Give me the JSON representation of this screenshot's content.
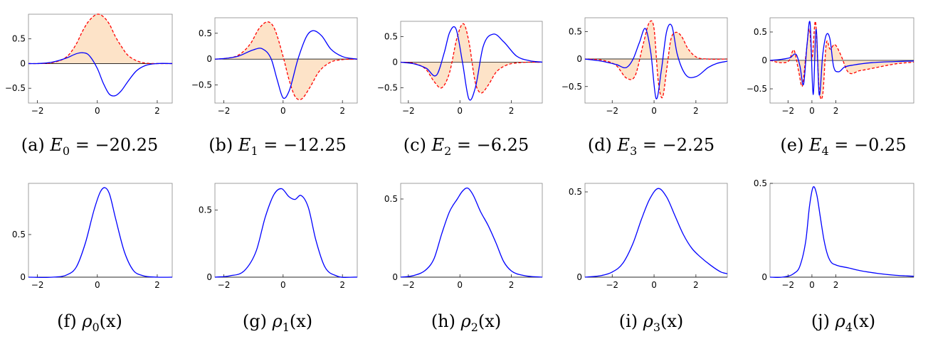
{
  "colors": {
    "real_part": "#ff0000",
    "imag_part": "#0000ff",
    "fill": "#fde3c8",
    "density": "#0000ff"
  },
  "chart_data": [
    {
      "type": "line",
      "caption": [
        "(a) ",
        "E",
        "0",
        " = −20.25"
      ],
      "n": 0,
      "kind": "wave",
      "xlim": [
        -2.3,
        2.5
      ],
      "ylim": [
        -0.8,
        1.0
      ],
      "xticks": [
        -2,
        0,
        2
      ],
      "xtick_labels": [
        "−2",
        "0",
        "2"
      ],
      "yticks": [
        -0.5,
        0,
        0.5
      ],
      "ytick_labels": [
        "−0.5",
        "0",
        "0.5"
      ],
      "series": [
        {
          "x": [
            -2.3,
            -2.0,
            -1.5,
            -1.0,
            -0.7,
            -0.5,
            -0.3,
            0.0,
            0.2,
            0.4,
            0.6,
            0.8,
            1.0,
            1.3,
            1.6,
            2.0,
            2.5
          ],
          "values": [
            0.0,
            0.0,
            0.02,
            0.15,
            0.4,
            0.65,
            0.85,
            1.0,
            0.95,
            0.8,
            0.55,
            0.35,
            0.18,
            0.06,
            0.01,
            0.0,
            0.0
          ]
        },
        {
          "x": [
            -2.3,
            -2.0,
            -1.5,
            -1.0,
            -0.7,
            -0.5,
            -0.3,
            0.0,
            0.2,
            0.4,
            0.6,
            0.8,
            1.0,
            1.3,
            1.6,
            2.0,
            2.5
          ],
          "values": [
            0.0,
            0.0,
            0.03,
            0.12,
            0.2,
            0.22,
            0.18,
            -0.1,
            -0.4,
            -0.62,
            -0.65,
            -0.55,
            -0.38,
            -0.15,
            -0.04,
            0.0,
            0.0
          ]
        }
      ]
    },
    {
      "type": "line",
      "caption": [
        "(b) ",
        "E",
        "1",
        " = −12.25"
      ],
      "n": 1,
      "kind": "wave",
      "xlim": [
        -2.3,
        2.5
      ],
      "ylim": [
        -0.85,
        0.8
      ],
      "xticks": [
        -2,
        0,
        2
      ],
      "xtick_labels": [
        "−2",
        "0",
        "2"
      ],
      "yticks": [
        -0.5,
        0,
        0.5
      ],
      "ytick_labels": [
        "−0.5",
        "0",
        "0.5"
      ],
      "series": [
        {
          "x": [
            -2.3,
            -2.0,
            -1.5,
            -1.1,
            -0.8,
            -0.5,
            -0.3,
            0.0,
            0.2,
            0.4,
            0.6,
            0.9,
            1.2,
            1.6,
            2.0,
            2.5
          ],
          "values": [
            0.0,
            0.01,
            0.08,
            0.3,
            0.6,
            0.72,
            0.6,
            0.05,
            -0.4,
            -0.72,
            -0.78,
            -0.55,
            -0.25,
            -0.06,
            -0.01,
            0.0
          ]
        },
        {
          "x": [
            -2.3,
            -2.0,
            -1.5,
            -1.0,
            -0.7,
            -0.4,
            -0.2,
            0.0,
            0.2,
            0.5,
            0.8,
            1.0,
            1.3,
            1.6,
            2.0,
            2.5
          ],
          "values": [
            0.0,
            0.01,
            0.06,
            0.18,
            0.2,
            0.0,
            -0.4,
            -0.75,
            -0.62,
            0.0,
            0.45,
            0.55,
            0.45,
            0.2,
            0.05,
            0.0
          ]
        }
      ]
    },
    {
      "type": "line",
      "caption": [
        "(c) ",
        "E",
        "2",
        " = −6.25"
      ],
      "n": 2,
      "kind": "wave",
      "xlim": [
        -2.3,
        3.2
      ],
      "ylim": [
        -0.8,
        0.8
      ],
      "xticks": [
        -2,
        0,
        2
      ],
      "xtick_labels": [
        "−2",
        "0",
        "2"
      ],
      "yticks": [
        -0.5,
        0,
        0.5
      ],
      "ytick_labels": [
        "−0.5",
        "0",
        "0.5"
      ],
      "series": [
        {
          "x": [
            -2.3,
            -1.8,
            -1.3,
            -1.0,
            -0.7,
            -0.4,
            -0.1,
            0.15,
            0.35,
            0.6,
            0.8,
            1.1,
            1.4,
            1.8,
            2.3,
            3.2
          ],
          "values": [
            0.0,
            -0.02,
            -0.15,
            -0.38,
            -0.5,
            -0.2,
            0.5,
            0.75,
            0.4,
            -0.4,
            -0.6,
            -0.45,
            -0.2,
            -0.06,
            -0.01,
            0.0
          ]
        },
        {
          "x": [
            -2.3,
            -1.8,
            -1.3,
            -0.9,
            -0.6,
            -0.4,
            -0.15,
            0.1,
            0.35,
            0.6,
            0.9,
            1.3,
            1.7,
            2.2,
            2.7,
            3.2
          ],
          "values": [
            0.0,
            -0.03,
            -0.12,
            -0.25,
            0.2,
            0.58,
            0.65,
            0.0,
            -0.72,
            -0.5,
            0.3,
            0.55,
            0.4,
            0.12,
            0.03,
            0.0
          ]
        }
      ]
    },
    {
      "type": "line",
      "caption": [
        "(d) ",
        "E",
        "3",
        " = −2.25"
      ],
      "n": 3,
      "kind": "wave",
      "xlim": [
        -3.3,
        3.5
      ],
      "ylim": [
        -0.8,
        0.75
      ],
      "xticks": [
        -2,
        0,
        2
      ],
      "xtick_labels": [
        "−2",
        "0",
        "2"
      ],
      "yticks": [
        -0.5,
        0,
        0.5
      ],
      "ytick_labels": [
        "−0.5",
        "0",
        "0.5"
      ],
      "series": [
        {
          "x": [
            -3.3,
            -2.5,
            -1.8,
            -1.3,
            -0.9,
            -0.5,
            -0.2,
            0.0,
            0.2,
            0.4,
            0.6,
            0.8,
            1.0,
            1.3,
            1.6,
            2.0,
            2.6,
            3.5
          ],
          "values": [
            0.0,
            -0.02,
            -0.12,
            -0.35,
            -0.3,
            0.3,
            0.68,
            0.55,
            -0.4,
            -0.7,
            -0.2,
            0.35,
            0.48,
            0.42,
            0.2,
            0.04,
            0.0,
            0.0
          ]
        },
        {
          "x": [
            -3.3,
            -2.5,
            -1.8,
            -1.3,
            -1.0,
            -0.7,
            -0.4,
            -0.15,
            0.1,
            0.35,
            0.6,
            0.85,
            1.1,
            1.5,
            2.0,
            2.6,
            3.0,
            3.5
          ],
          "values": [
            0.0,
            -0.04,
            -0.1,
            -0.15,
            0.0,
            0.3,
            0.55,
            0.1,
            -0.72,
            -0.2,
            0.5,
            0.6,
            0.1,
            -0.28,
            -0.32,
            -0.15,
            -0.08,
            -0.04
          ]
        }
      ]
    },
    {
      "type": "line",
      "caption": [
        "(e) ",
        "E",
        "4",
        " = −0.25"
      ],
      "n": 4,
      "kind": "wave",
      "xlim": [
        -3.5,
        8.5
      ],
      "ylim": [
        -0.75,
        0.75
      ],
      "xticks": [
        -2,
        0,
        2
      ],
      "xtick_labels": [
        "−2",
        "0",
        "2"
      ],
      "yticks": [
        -0.5,
        0,
        0.5
      ],
      "ytick_labels": [
        "−0.5",
        "0",
        "0.5"
      ],
      "series": [
        {
          "x": [
            -3.5,
            -2.5,
            -1.9,
            -1.5,
            -1.1,
            -0.8,
            -0.5,
            -0.2,
            0.0,
            0.3,
            0.6,
            0.9,
            1.2,
            1.5,
            1.9,
            2.4,
            3.0,
            4.0,
            5.5,
            7.0,
            8.5
          ],
          "values": [
            0.0,
            -0.04,
            0.0,
            0.18,
            -0.2,
            -0.45,
            0.1,
            0.55,
            0.05,
            0.68,
            -0.5,
            -0.6,
            0.3,
            0.2,
            0.28,
            0.1,
            -0.2,
            -0.18,
            -0.12,
            -0.06,
            -0.03
          ]
        },
        {
          "x": [
            -3.5,
            -2.5,
            -1.8,
            -1.3,
            -1.0,
            -0.7,
            -0.4,
            -0.15,
            0.1,
            0.35,
            0.6,
            0.9,
            1.2,
            1.5,
            1.8,
            2.2,
            2.7,
            3.5,
            5.0,
            7.0,
            8.5
          ],
          "values": [
            0.0,
            0.02,
            0.05,
            0.1,
            -0.1,
            -0.42,
            0.3,
            0.65,
            -0.6,
            0.55,
            -0.6,
            0.1,
            0.45,
            0.38,
            -0.1,
            -0.2,
            -0.12,
            -0.08,
            -0.04,
            -0.02,
            -0.01
          ]
        }
      ]
    },
    {
      "type": "line",
      "caption": [
        "(f) ",
        "ρ",
        "0",
        "(x)"
      ],
      "n": 0,
      "kind": "density",
      "xlim": [
        -2.3,
        2.5
      ],
      "ylim": [
        0.0,
        1.1
      ],
      "xticks": [
        -2,
        0,
        2
      ],
      "xtick_labels": [
        "−2",
        "0",
        "2"
      ],
      "yticks": [
        0,
        0.5
      ],
      "ytick_labels": [
        "0",
        "0.5"
      ],
      "series": [
        {
          "x": [
            -2.3,
            -1.5,
            -1.0,
            -0.7,
            -0.4,
            -0.1,
            0.1,
            0.25,
            0.4,
            0.6,
            0.9,
            1.2,
            1.5,
            2.0,
            2.5
          ],
          "values": [
            0.0,
            0.0,
            0.03,
            0.12,
            0.4,
            0.8,
            1.0,
            1.05,
            0.98,
            0.7,
            0.3,
            0.08,
            0.02,
            0.0,
            0.0
          ]
        }
      ]
    },
    {
      "type": "line",
      "caption": [
        "(g) ",
        "ρ",
        "1",
        "(x)"
      ],
      "n": 1,
      "kind": "density",
      "xlim": [
        -2.3,
        2.5
      ],
      "ylim": [
        0.0,
        0.7
      ],
      "xticks": [
        -2,
        0,
        2
      ],
      "xtick_labels": [
        "−2",
        "0",
        "2"
      ],
      "yticks": [
        0,
        0.5
      ],
      "ytick_labels": [
        "0",
        "0.5"
      ],
      "series": [
        {
          "x": [
            -2.3,
            -1.8,
            -1.3,
            -0.9,
            -0.6,
            -0.3,
            -0.05,
            0.2,
            0.4,
            0.6,
            0.85,
            1.1,
            1.4,
            1.8,
            2.5
          ],
          "values": [
            0.0,
            0.01,
            0.05,
            0.2,
            0.45,
            0.62,
            0.66,
            0.6,
            0.58,
            0.61,
            0.52,
            0.28,
            0.08,
            0.01,
            0.0
          ]
        }
      ]
    },
    {
      "type": "line",
      "caption": [
        "(h) ",
        "ρ",
        "2",
        "(x)"
      ],
      "n": 2,
      "kind": "density",
      "xlim": [
        -2.3,
        3.2
      ],
      "ylim": [
        0.0,
        0.6
      ],
      "xticks": [
        -2,
        0,
        2
      ],
      "xtick_labels": [
        "−2",
        "0",
        "2"
      ],
      "yticks": [
        0,
        0.5
      ],
      "ytick_labels": [
        "0",
        "0.5"
      ],
      "series": [
        {
          "x": [
            -2.3,
            -1.8,
            -1.3,
            -1.0,
            -0.7,
            -0.4,
            -0.1,
            0.1,
            0.3,
            0.5,
            0.8,
            1.1,
            1.4,
            1.7,
            2.0,
            2.5,
            3.2
          ],
          "values": [
            0.0,
            0.01,
            0.05,
            0.12,
            0.28,
            0.42,
            0.5,
            0.55,
            0.57,
            0.53,
            0.42,
            0.33,
            0.22,
            0.1,
            0.04,
            0.01,
            0.0
          ]
        }
      ]
    },
    {
      "type": "line",
      "caption": [
        "(i) ",
        "ρ",
        "3",
        "(x)"
      ],
      "n": 3,
      "kind": "density",
      "xlim": [
        -3.3,
        3.5
      ],
      "ylim": [
        0.0,
        0.55
      ],
      "xticks": [
        -2,
        0,
        2
      ],
      "xtick_labels": [
        "−2",
        "0",
        "2"
      ],
      "yticks": [
        0,
        0.5
      ],
      "ytick_labels": [
        "0",
        "0.5"
      ],
      "series": [
        {
          "x": [
            -3.3,
            -2.5,
            -2.0,
            -1.5,
            -1.0,
            -0.6,
            -0.2,
            0.2,
            0.6,
            1.0,
            1.4,
            1.8,
            2.2,
            2.7,
            3.2,
            3.5
          ],
          "values": [
            0.0,
            0.01,
            0.03,
            0.08,
            0.2,
            0.34,
            0.46,
            0.52,
            0.47,
            0.36,
            0.25,
            0.17,
            0.12,
            0.07,
            0.03,
            0.02
          ]
        }
      ]
    },
    {
      "type": "line",
      "caption": [
        "(j) ",
        "ρ",
        "4",
        "(x)"
      ],
      "n": 4,
      "kind": "density",
      "xlim": [
        -3.5,
        8.5
      ],
      "ylim": [
        0.0,
        0.5
      ],
      "xticks": [
        -2,
        0,
        2
      ],
      "xtick_labels": [
        "−2",
        "0",
        "2"
      ],
      "yticks": [
        0,
        0.5
      ],
      "ytick_labels": [
        "0",
        "0.5"
      ],
      "series": [
        {
          "x": [
            -3.5,
            -2.5,
            -1.5,
            -1.0,
            -0.5,
            -0.2,
            0.1,
            0.4,
            0.7,
            1.0,
            1.3,
            1.6,
            2.0,
            3.0,
            4.0,
            5.5,
            7.0,
            8.5
          ],
          "values": [
            0.0,
            0.0,
            0.02,
            0.06,
            0.2,
            0.38,
            0.48,
            0.44,
            0.32,
            0.2,
            0.12,
            0.08,
            0.065,
            0.05,
            0.035,
            0.02,
            0.01,
            0.005
          ]
        }
      ]
    }
  ]
}
